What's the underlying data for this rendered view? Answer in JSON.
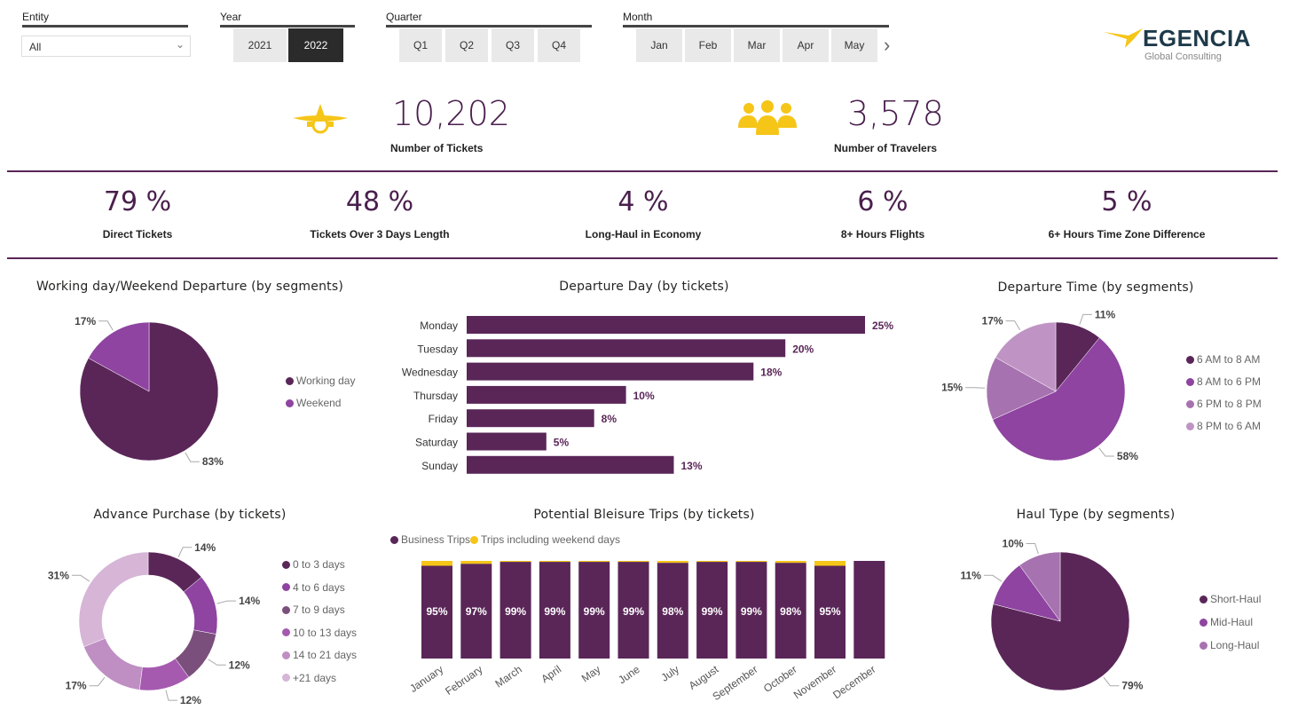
{
  "filters": {
    "entity": {
      "label": "Entity",
      "value": "All"
    },
    "year": {
      "label": "Year",
      "options": [
        "2021",
        "2022"
      ],
      "selected": "2022"
    },
    "quarter": {
      "label": "Quarter",
      "options": [
        "Q1",
        "Q2",
        "Q3",
        "Q4"
      ]
    },
    "month": {
      "label": "Month",
      "options": [
        "Jan",
        "Feb",
        "Mar",
        "Apr",
        "May"
      ]
    }
  },
  "logo": {
    "name": "EGENCIA",
    "sub": "Global Consulting"
  },
  "kpis": {
    "tickets": {
      "value": "10,202",
      "label": "Number of Tickets"
    },
    "travelers": {
      "value": "3,578",
      "label": "Number of Travelers"
    }
  },
  "percentages": [
    {
      "value": "79 %",
      "label": "Direct Tickets"
    },
    {
      "value": "48 %",
      "label": "Tickets Over 3 Days Length"
    },
    {
      "value": "4 %",
      "label": "Long-Haul in Economy"
    },
    {
      "value": "6 %",
      "label": "8+ Hours Flights"
    },
    {
      "value": "5 %",
      "label": "6+ Hours Time Zone Difference"
    }
  ],
  "colors": {
    "accent": "#5a2658",
    "yellow": "#f5c518"
  },
  "chart_data": [
    {
      "id": "weekday",
      "type": "pie",
      "title": "Working day/Weekend Departure (by segments)",
      "series": [
        {
          "name": "Working day",
          "value": 83,
          "label": "83%",
          "color": "#5a2658"
        },
        {
          "name": "Weekend",
          "value": 17,
          "label": "17%",
          "color": "#8e44a0"
        }
      ],
      "legend": "right"
    },
    {
      "id": "depday",
      "type": "bar",
      "title": "Departure Day (by tickets)",
      "categories": [
        "Monday",
        "Tuesday",
        "Wednesday",
        "Thursday",
        "Friday",
        "Saturday",
        "Sunday"
      ],
      "values": [
        25,
        20,
        18,
        10,
        8,
        5,
        13
      ],
      "labels": [
        "25%",
        "20%",
        "18%",
        "10%",
        "8%",
        "5%",
        "13%"
      ]
    },
    {
      "id": "deptime",
      "type": "pie",
      "title": "Departure Time (by segments)",
      "series": [
        {
          "name": "6 AM to 8 AM",
          "value": 11,
          "label": "11%",
          "color": "#5a2658"
        },
        {
          "name": "8 AM to 6 PM",
          "value": 58,
          "label": "58%",
          "color": "#8e44a0"
        },
        {
          "name": "6 PM to 8 PM",
          "value": 15,
          "label": "15%",
          "color": "#a772b0"
        },
        {
          "name": "8 PM to 6 AM",
          "value": 17,
          "label": "17%",
          "color": "#bf94c4"
        }
      ],
      "legend": "right"
    },
    {
      "id": "advance",
      "type": "pie",
      "donut": true,
      "title": "Advance Purchase (by tickets)",
      "series": [
        {
          "name": "0 to 3 days",
          "value": 14,
          "label": "14%",
          "color": "#5a2658"
        },
        {
          "name": "4 to 6 days",
          "value": 14,
          "label": "14%",
          "color": "#8e44a0"
        },
        {
          "name": "7 to 9 days",
          "value": 12,
          "label": "12%",
          "color": "#7b4f7b"
        },
        {
          "name": "10 to 13 days",
          "value": 12,
          "label": "12%",
          "color": "#a55ab0"
        },
        {
          "name": "14 to 21 days",
          "value": 17,
          "label": "17%",
          "color": "#bf8ec3"
        },
        {
          "name": "+21 days",
          "value": 31,
          "label": "31%",
          "color": "#d6b5d6"
        }
      ],
      "legend": "right"
    },
    {
      "id": "bleisure",
      "type": "bar",
      "stacked": true,
      "title": "Potential Bleisure Trips (by tickets)",
      "legend": [
        "Business Trips",
        "Trips including weekend days"
      ],
      "categories": [
        "January",
        "February",
        "March",
        "April",
        "May",
        "June",
        "July",
        "August",
        "September",
        "October",
        "November",
        "December"
      ],
      "values": [
        95,
        97,
        99,
        99,
        99,
        99,
        98,
        99,
        99,
        98,
        95,
        null
      ],
      "labels": [
        "95%",
        "97%",
        "99%",
        "99%",
        "99%",
        "99%",
        "98%",
        "99%",
        "99%",
        "98%",
        "95%",
        ""
      ]
    },
    {
      "id": "haul",
      "type": "pie",
      "title": "Haul Type (by segments)",
      "series": [
        {
          "name": "Short-Haul",
          "value": 79,
          "label": "79%",
          "color": "#5a2658"
        },
        {
          "name": "Mid-Haul",
          "value": 11,
          "label": "11%",
          "color": "#8e44a0"
        },
        {
          "name": "Long-Haul",
          "value": 10,
          "label": "10%",
          "color": "#a772b0"
        }
      ],
      "legend": "right"
    }
  ]
}
